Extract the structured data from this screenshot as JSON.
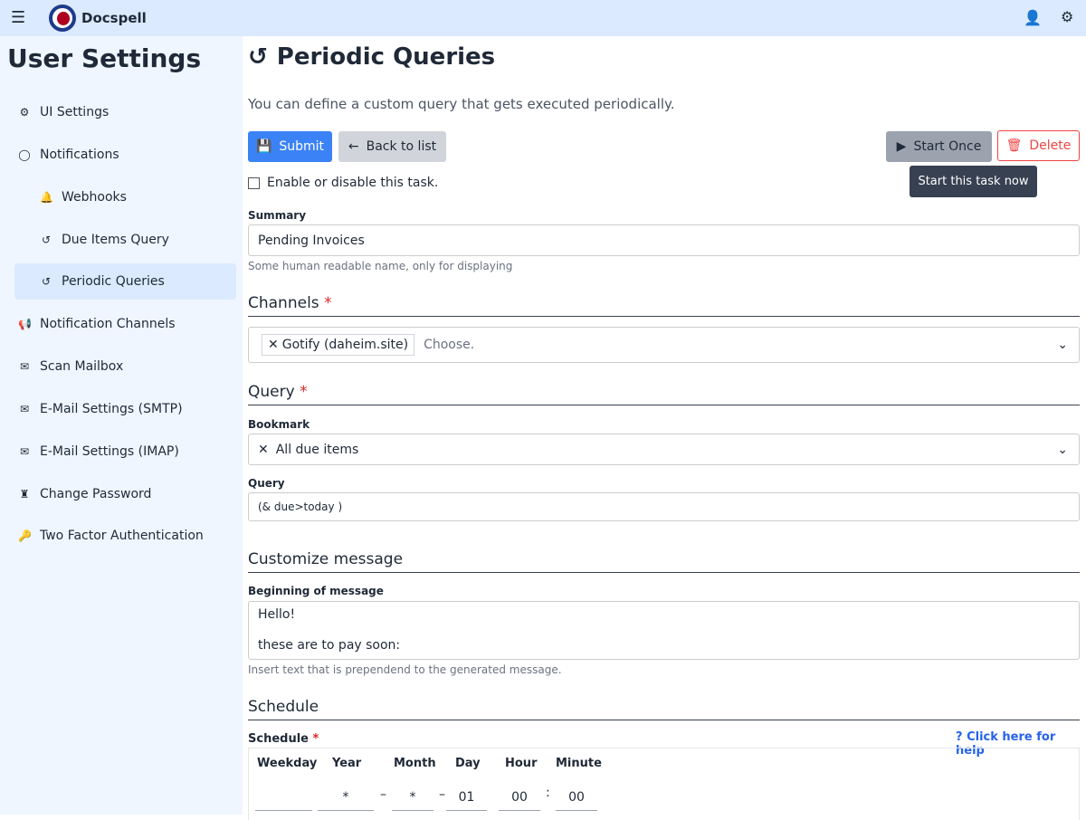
{
  "app": {
    "name": "Docspell",
    "menu_icon": "hamburger-icon",
    "user_icon": "user-icon",
    "settings_icon": "gears-icon",
    "brand_color": "#b00020"
  },
  "sidebar": {
    "title": "User Settings",
    "items": [
      {
        "label": "UI Settings",
        "icon": "gear-icon"
      },
      {
        "label": "Notifications",
        "icon": "comment-icon"
      },
      {
        "label": "Webhooks",
        "icon": "bell-icon"
      },
      {
        "label": "Due Items Query",
        "icon": "history-icon"
      },
      {
        "label": "Periodic Queries",
        "icon": "history-icon",
        "active": true
      },
      {
        "label": "Notification Channels",
        "icon": "bullhorn-icon"
      },
      {
        "label": "Scan Mailbox",
        "icon": "envelope-open-icon"
      },
      {
        "label": "E-Mail Settings (SMTP)",
        "icon": "envelope-icon"
      },
      {
        "label": "E-Mail Settings (IMAP)",
        "icon": "envelope-icon"
      },
      {
        "label": "Change Password",
        "icon": "user-secret-icon"
      },
      {
        "label": "Two Factor Authentication",
        "icon": "key-icon"
      }
    ]
  },
  "page": {
    "title": "Periodic Queries",
    "intro": "You can define a custom query that gets executed periodically.",
    "submit": "Submit",
    "back": "Back to list",
    "start_once": "Start Once",
    "delete": "Delete",
    "tooltip": "Start this task now",
    "enable_label": "Enable or disable this task.",
    "enabled": false,
    "summary_label": "Summary",
    "summary_value": "Pending Invoices",
    "summary_help": "Some human readable name, only for displaying",
    "channels_heading": "Channels",
    "channel_tag": "Gotify (daheim.site)",
    "channel_placeholder": "Choose.",
    "query_heading": "Query",
    "bookmark_label": "Bookmark",
    "bookmark_value": "All due items",
    "query_label": "Query",
    "query_value": "(& due>today )",
    "customize_heading": "Customize message",
    "message_label": "Beginning of message",
    "message_line1": "Hello!",
    "message_line2": "these are to pay soon:",
    "message_help": "Insert text that is prependend to the generated message.",
    "schedule_heading": "Schedule",
    "schedule_label": "Schedule",
    "help_link": "Click here for help",
    "schedule_cols": [
      "Weekday",
      "Year",
      "Month",
      "Day",
      "Hour",
      "Minute"
    ],
    "schedule_values": {
      "weekday": "",
      "year": "*",
      "month": "*",
      "day": "01",
      "hour": "00",
      "minute": "00"
    }
  }
}
